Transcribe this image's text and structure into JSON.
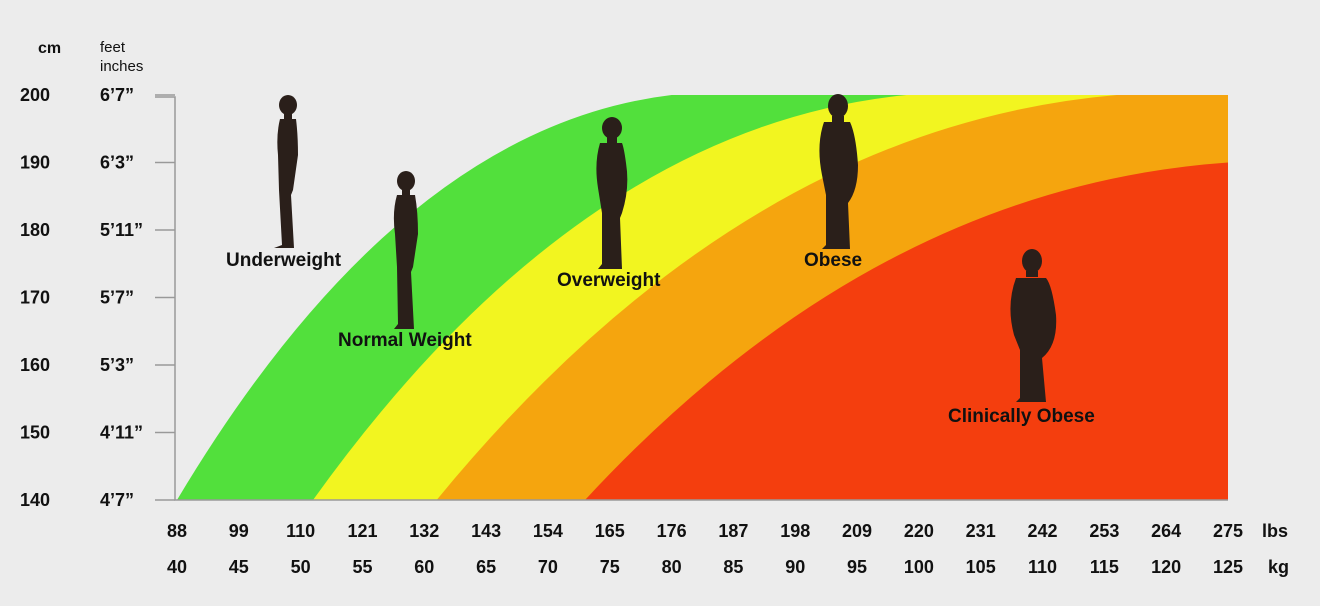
{
  "chart_data": {
    "type": "area",
    "y_headers": {
      "cm": "cm",
      "imperial": "feet\ninches"
    },
    "y_ticks": [
      {
        "cm": "200",
        "ft": "6’7”"
      },
      {
        "cm": "190",
        "ft": "6’3”"
      },
      {
        "cm": "180",
        "ft": "5’11”"
      },
      {
        "cm": "170",
        "ft": "5’7”"
      },
      {
        "cm": "160",
        "ft": "5’3”"
      },
      {
        "cm": "150",
        "ft": "4’11”"
      },
      {
        "cm": "140",
        "ft": "4’7”"
      }
    ],
    "ylim_cm": [
      140,
      200
    ],
    "x_lbs": [
      "88",
      "99",
      "110",
      "121",
      "132",
      "143",
      "154",
      "165",
      "176",
      "187",
      "198",
      "209",
      "220",
      "231",
      "242",
      "253",
      "264",
      "275"
    ],
    "x_kg": [
      "40",
      "45",
      "50",
      "55",
      "60",
      "65",
      "70",
      "75",
      "80",
      "85",
      "90",
      "95",
      "100",
      "105",
      "110",
      "115",
      "120",
      "125"
    ],
    "x_unit_lbs": "lbs",
    "x_unit_kg": "kg",
    "xlim_kg": [
      40,
      125
    ],
    "zones": [
      {
        "name": "Underweight",
        "color": "#ebebeb",
        "kg_at_140": 40,
        "kg_at_200": 40
      },
      {
        "name": "Normal Weight",
        "color": "#52e03c",
        "kg_at_140": 40,
        "kg_at_200": 80
      },
      {
        "name": "Overweight",
        "color": "#f2f520",
        "kg_at_140": 51,
        "kg_at_200": 99
      },
      {
        "name": "Obese",
        "color": "#f5a50e",
        "kg_at_140": 61,
        "kg_at_200": 116
      },
      {
        "name": "Clinically Obese",
        "color": "#f43e0e",
        "kg_at_140": 73,
        "kg_at_200": 125
      }
    ],
    "labels": {
      "underweight": "Underweight",
      "normal": "Normal Weight",
      "overweight": "Overweight",
      "obese": "Obese",
      "clinically_obese": "Clinically Obese"
    }
  }
}
